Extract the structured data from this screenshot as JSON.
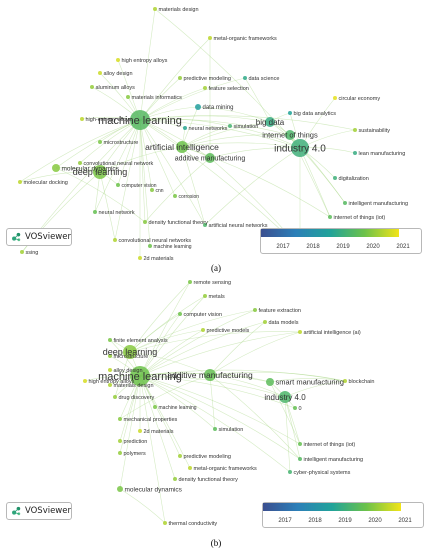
{
  "colors": {
    "c2017": "#3b4f8f",
    "c2018": "#2c7fb8",
    "c2019": "#21a39a",
    "c2020": "#6cc24a",
    "c2021": "#f2e418",
    "edge": "#9fd27a"
  },
  "legend": {
    "ticks": [
      "2017",
      "2018",
      "2019",
      "2020",
      "2021"
    ]
  },
  "brand": {
    "name": "VOSviewer",
    "icon": "vosviewer-logo-icon"
  },
  "panels": [
    {
      "id": "a",
      "caption": "(a)",
      "nodes": [
        {
          "label": "machine learning",
          "fs": 11,
          "year": 2019.7,
          "r": 10
        },
        {
          "label": "industry 4.0",
          "fs": 10,
          "year": 2019.4,
          "r": 9
        },
        {
          "label": "deep learning",
          "fs": 9,
          "year": 2020.1,
          "r": 7
        },
        {
          "label": "artificial intelligence",
          "fs": 8.5,
          "year": 2020.0,
          "r": 6
        },
        {
          "label": "big data",
          "fs": 8,
          "year": 2019.3,
          "r": 5
        },
        {
          "label": "internet of things",
          "fs": 7.5,
          "year": 2019.6,
          "r": 5
        },
        {
          "label": "additive manufacturing",
          "fs": 7,
          "year": 2019.8,
          "r": 5
        },
        {
          "label": "molecular dynamics",
          "fs": 6.5,
          "year": 2020.2,
          "r": 4
        },
        {
          "label": "materials design",
          "fs": 5.5,
          "year": 2020.5,
          "r": 2
        },
        {
          "label": "metal-organic frameworks",
          "fs": 5.5,
          "year": 2020.6,
          "r": 2
        },
        {
          "label": "high entropy alloys",
          "fs": 5.5,
          "year": 2020.8,
          "r": 2
        },
        {
          "label": "predictive modeling",
          "fs": 5.5,
          "year": 2020.3,
          "r": 2
        },
        {
          "label": "data science",
          "fs": 5.5,
          "year": 2019.2,
          "r": 2
        },
        {
          "label": "alloy design",
          "fs": 5.5,
          "year": 2020.7,
          "r": 2
        },
        {
          "label": "feature selection",
          "fs": 5.5,
          "year": 2020.4,
          "r": 2
        },
        {
          "label": "aluminum alloys",
          "fs": 5.5,
          "year": 2020.3,
          "r": 2
        },
        {
          "label": "materials informatics",
          "fs": 5.5,
          "year": 2020.2,
          "r": 2
        },
        {
          "label": "circular economy",
          "fs": 5.5,
          "year": 2020.9,
          "r": 2
        },
        {
          "label": "data mining",
          "fs": 6,
          "year": 2018.9,
          "r": 3
        },
        {
          "label": "high-entropy alloys",
          "fs": 5.5,
          "year": 2020.6,
          "r": 2
        },
        {
          "label": "neural networks",
          "fs": 5.5,
          "year": 2019.1,
          "r": 2
        },
        {
          "label": "microstructure",
          "fs": 5.5,
          "year": 2020.1,
          "r": 2
        },
        {
          "label": "simulation",
          "fs": 5.5,
          "year": 2019.5,
          "r": 2
        },
        {
          "label": "big data analytics",
          "fs": 5.5,
          "year": 2019.0,
          "r": 2
        },
        {
          "label": "sustainability",
          "fs": 5.5,
          "year": 2020.4,
          "r": 2
        },
        {
          "label": "lean manufacturing",
          "fs": 5.5,
          "year": 2019.3,
          "r": 2
        },
        {
          "label": "convolutional neural network",
          "fs": 5.5,
          "year": 2020.3,
          "r": 2
        },
        {
          "label": "molecular docking",
          "fs": 5.5,
          "year": 2020.6,
          "r": 2
        },
        {
          "label": "computer vision",
          "fs": 5,
          "year": 2020.0,
          "r": 2
        },
        {
          "label": "cnn",
          "fs": 5,
          "year": 2020.2,
          "r": 2
        },
        {
          "label": "corrosion",
          "fs": 5,
          "year": 2020.1,
          "r": 2
        },
        {
          "label": "digitalization",
          "fs": 5.5,
          "year": 2019.4,
          "r": 2
        },
        {
          "label": "intelligent manufacturing",
          "fs": 5.5,
          "year": 2019.7,
          "r": 2
        },
        {
          "label": "neural network",
          "fs": 5.5,
          "year": 2019.9,
          "r": 2
        },
        {
          "label": "density functional theory",
          "fs": 5.5,
          "year": 2020.2,
          "r": 2
        },
        {
          "label": "internet of things (iot)",
          "fs": 5.5,
          "year": 2019.8,
          "r": 2
        },
        {
          "label": "artificial neural networks",
          "fs": 5.5,
          "year": 2019.6,
          "r": 2
        },
        {
          "label": "convolutional neural networks",
          "fs": 5.5,
          "year": 2020.5,
          "r": 2
        },
        {
          "label": "machine learning",
          "fs": 5,
          "year": 2020.0,
          "r": 2
        },
        {
          "label": "2d materials",
          "fs": 5.5,
          "year": 2020.7,
          "r": 2
        },
        {
          "label": "3d printing",
          "fs": 5.5,
          "year": 2020.1,
          "r": 2
        },
        {
          "label": "ssing",
          "fs": 5.5,
          "year": 2020.4,
          "r": 2
        }
      ]
    },
    {
      "id": "b",
      "caption": "(b)",
      "nodes": [
        {
          "label": "machine learning",
          "fs": 11,
          "year": 2020.0,
          "r": 10
        },
        {
          "label": "deep learning",
          "fs": 9,
          "year": 2020.2,
          "r": 7
        },
        {
          "label": "additive manufacturing",
          "fs": 8.5,
          "year": 2019.9,
          "r": 6
        },
        {
          "label": "industry 4.0",
          "fs": 8,
          "year": 2019.6,
          "r": 6
        },
        {
          "label": "smart manufacturing",
          "fs": 7.5,
          "year": 2019.8,
          "r": 4
        },
        {
          "label": "remote sensing",
          "fs": 5.5,
          "year": 2020.1,
          "r": 2
        },
        {
          "label": "metals",
          "fs": 5.5,
          "year": 2020.3,
          "r": 2
        },
        {
          "label": "computer vision",
          "fs": 5.5,
          "year": 2020.0,
          "r": 2
        },
        {
          "label": "feature extraction",
          "fs": 5.5,
          "year": 2020.2,
          "r": 2
        },
        {
          "label": "data models",
          "fs": 5.5,
          "year": 2020.4,
          "r": 2
        },
        {
          "label": "predictive models",
          "fs": 5.5,
          "year": 2020.5,
          "r": 2
        },
        {
          "label": "artificial intelligence (ai)",
          "fs": 5.5,
          "year": 2020.6,
          "r": 2
        },
        {
          "label": "finite element analysis",
          "fs": 5.5,
          "year": 2020.1,
          "r": 2
        },
        {
          "label": "microstructure",
          "fs": 5.5,
          "year": 2020.3,
          "r": 2
        },
        {
          "label": "alloy design",
          "fs": 5.5,
          "year": 2020.6,
          "r": 2
        },
        {
          "label": "high entropy alloys",
          "fs": 5.5,
          "year": 2020.8,
          "r": 2
        },
        {
          "label": "blockchain",
          "fs": 5.5,
          "year": 2020.5,
          "r": 2
        },
        {
          "label": "drug discovery",
          "fs": 5.5,
          "year": 2020.3,
          "r": 2
        },
        {
          "label": "machine learning",
          "fs": 5,
          "year": 2020.1,
          "r": 2
        },
        {
          "label": "materials design",
          "fs": 5.5,
          "year": 2020.5,
          "r": 2
        },
        {
          "label": "mechanical properties",
          "fs": 5.5,
          "year": 2020.2,
          "r": 2
        },
        {
          "label": "internet of things (iot)",
          "fs": 5.5,
          "year": 2019.9,
          "r": 2
        },
        {
          "label": "intelligent manufacturing",
          "fs": 5.5,
          "year": 2019.7,
          "r": 2
        },
        {
          "label": "2d materials",
          "fs": 5.5,
          "year": 2020.7,
          "r": 2
        },
        {
          "label": "simulation",
          "fs": 5.5,
          "year": 2019.8,
          "r": 2
        },
        {
          "label": "prediction",
          "fs": 5.5,
          "year": 2020.4,
          "r": 2
        },
        {
          "label": "cyber-physical systems",
          "fs": 5.5,
          "year": 2019.5,
          "r": 2
        },
        {
          "label": "polymers",
          "fs": 5.5,
          "year": 2020.3,
          "r": 2
        },
        {
          "label": "predictive modeling",
          "fs": 5.5,
          "year": 2020.4,
          "r": 2
        },
        {
          "label": "metal-organic frameworks",
          "fs": 5.5,
          "year": 2020.6,
          "r": 2
        },
        {
          "label": "density functional theory",
          "fs": 5.5,
          "year": 2020.3,
          "r": 2
        },
        {
          "label": "molecular dynamics",
          "fs": 6.5,
          "year": 2020.1,
          "r": 3
        },
        {
          "label": "thermal conductivity",
          "fs": 5.5,
          "year": 2020.5,
          "r": 2
        },
        {
          "label": "0",
          "fs": 5.5,
          "year": 2019.9,
          "r": 2
        }
      ]
    }
  ]
}
